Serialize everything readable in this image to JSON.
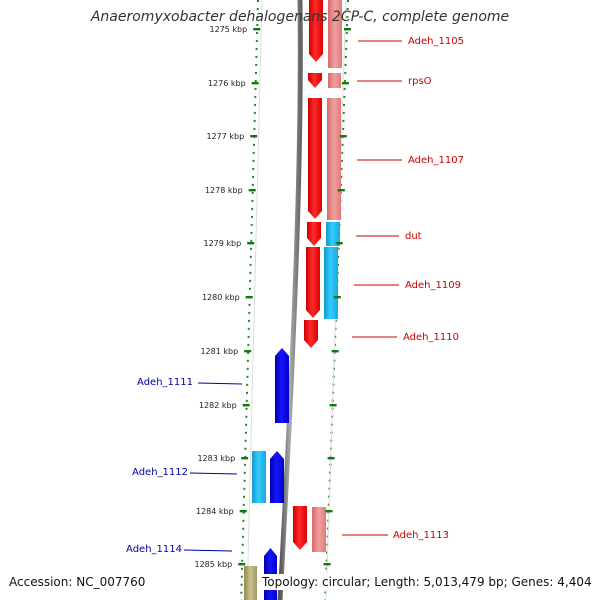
{
  "title": "Anaeromyxobacter dehalogenans 2CP-C, complete genome",
  "accession_text": "Accession: NC_007760",
  "summary_text": "Topology: circular; Length: 5,013,479 bp; Genes: 4,404",
  "colors": {
    "forward_cds": "#ff0000",
    "forward_rna": "#ee8888",
    "reverse_cds": "#0000ee",
    "reverse_rna": "#22bbee",
    "backbone": "#888888",
    "tick_dots": "#228822",
    "label_forward": "#cc0000",
    "label_reverse": "#0000aa",
    "olive_feature": "#b0aa70"
  },
  "ticks": [
    {
      "label": "1275 kbp"
    },
    {
      "label": "1276 kbp"
    },
    {
      "label": "1277 kbp"
    },
    {
      "label": "1278 kbp"
    },
    {
      "label": "1279 kbp"
    },
    {
      "label": "1280 kbp"
    },
    {
      "label": "1281 kbp"
    },
    {
      "label": "1282 kbp"
    },
    {
      "label": "1283 kbp"
    },
    {
      "label": "1284 kbp"
    },
    {
      "label": "1285 kbp"
    }
  ],
  "genes": [
    {
      "name": "Adeh_1105",
      "strand": "forward"
    },
    {
      "name": "rpsO",
      "strand": "forward"
    },
    {
      "name": "Adeh_1107",
      "strand": "forward"
    },
    {
      "name": "dut",
      "strand": "forward"
    },
    {
      "name": "Adeh_1109",
      "strand": "forward"
    },
    {
      "name": "Adeh_1110",
      "strand": "forward"
    },
    {
      "name": "Adeh_1111",
      "strand": "reverse"
    },
    {
      "name": "Adeh_1112",
      "strand": "reverse"
    },
    {
      "name": "Adeh_1113",
      "strand": "forward"
    },
    {
      "name": "Adeh_1114",
      "strand": "reverse"
    }
  ]
}
